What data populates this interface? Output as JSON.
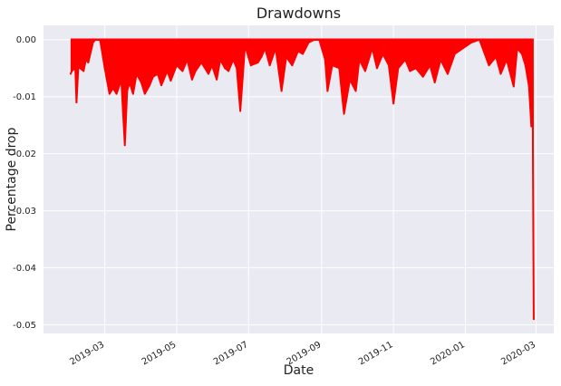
{
  "chart_data": {
    "type": "area",
    "title": "Drawdowns",
    "xlabel": "Date",
    "ylabel": "Percentage drop",
    "grid": true,
    "legend": "none",
    "x_type": "date",
    "xlim": [
      "2019-01-08",
      "2020-03-16"
    ],
    "ylim": [
      -0.0515,
      0.0025
    ],
    "x_ticks": [
      {
        "date": "2019-03-01",
        "label": "2019-03"
      },
      {
        "date": "2019-05-01",
        "label": "2019-05"
      },
      {
        "date": "2019-07-01",
        "label": "2019-07"
      },
      {
        "date": "2019-09-01",
        "label": "2019-09"
      },
      {
        "date": "2019-11-01",
        "label": "2019-11"
      },
      {
        "date": "2020-01-01",
        "label": "2020-01"
      },
      {
        "date": "2020-03-01",
        "label": "2020-03"
      }
    ],
    "y_ticks": [
      {
        "value": 0.0,
        "label": "0.00"
      },
      {
        "value": -0.01,
        "label": "-0.01"
      },
      {
        "value": -0.02,
        "label": "-0.02"
      },
      {
        "value": -0.03,
        "label": "-0.03"
      },
      {
        "value": -0.04,
        "label": "-0.04"
      },
      {
        "value": -0.05,
        "label": "-0.05"
      }
    ],
    "series": [
      {
        "color": "#ff0000",
        "x": [
          "2019-01-31",
          "2019-02-01",
          "2019-02-04",
          "2019-02-05",
          "2019-02-07",
          "2019-02-08",
          "2019-02-11",
          "2019-02-13",
          "2019-02-15",
          "2019-02-19",
          "2019-02-21",
          "2019-02-25",
          "2019-03-01",
          "2019-03-05",
          "2019-03-08",
          "2019-03-11",
          "2019-03-15",
          "2019-03-18",
          "2019-03-20",
          "2019-03-22",
          "2019-03-25",
          "2019-03-28",
          "2019-04-01",
          "2019-04-04",
          "2019-04-08",
          "2019-04-11",
          "2019-04-15",
          "2019-04-18",
          "2019-04-23",
          "2019-04-26",
          "2019-05-01",
          "2019-05-06",
          "2019-05-10",
          "2019-05-14",
          "2019-05-17",
          "2019-05-22",
          "2019-05-28",
          "2019-05-31",
          "2019-06-04",
          "2019-06-07",
          "2019-06-11",
          "2019-06-14",
          "2019-06-18",
          "2019-06-21",
          "2019-06-24",
          "2019-06-28",
          "2019-07-03",
          "2019-07-09",
          "2019-07-12",
          "2019-07-15",
          "2019-07-19",
          "2019-07-24",
          "2019-07-29",
          "2019-08-02",
          "2019-08-07",
          "2019-08-12",
          "2019-08-16",
          "2019-08-21",
          "2019-08-26",
          "2019-08-30",
          "2019-09-04",
          "2019-09-06",
          "2019-09-10",
          "2019-09-16",
          "2019-09-20",
          "2019-09-25",
          "2019-09-30",
          "2019-10-03",
          "2019-10-08",
          "2019-10-14",
          "2019-10-18",
          "2019-10-23",
          "2019-10-28",
          "2019-11-01",
          "2019-11-05",
          "2019-11-11",
          "2019-11-15",
          "2019-11-20",
          "2019-11-26",
          "2019-12-02",
          "2019-12-06",
          "2019-12-11",
          "2019-12-17",
          "2019-12-23",
          "2019-12-30",
          "2020-01-06",
          "2020-01-13",
          "2020-01-21",
          "2020-01-27",
          "2020-01-31",
          "2020-02-05",
          "2020-02-11",
          "2020-02-14",
          "2020-02-18",
          "2020-02-21",
          "2020-02-24",
          "2020-02-26",
          "2020-02-27",
          "2020-02-28"
        ],
        "y": [
          -0.006,
          -0.0055,
          -0.005,
          -0.011,
          -0.003,
          -0.005,
          -0.0055,
          -0.0035,
          -0.004,
          -0.0005,
          0.0,
          0.0,
          -0.005,
          -0.0095,
          -0.0085,
          -0.0095,
          -0.007,
          -0.0185,
          -0.009,
          -0.0075,
          -0.0095,
          -0.006,
          -0.0075,
          -0.0095,
          -0.008,
          -0.0065,
          -0.006,
          -0.008,
          -0.0055,
          -0.0072,
          -0.0045,
          -0.0055,
          -0.0035,
          -0.007,
          -0.0055,
          -0.004,
          -0.006,
          -0.0045,
          -0.007,
          -0.0035,
          -0.005,
          -0.0055,
          -0.0035,
          -0.005,
          -0.0125,
          -0.001,
          -0.0045,
          -0.004,
          -0.003,
          -0.0015,
          -0.0045,
          -0.0015,
          -0.009,
          -0.003,
          -0.0045,
          -0.002,
          -0.0025,
          -0.0005,
          0.0,
          0.0,
          -0.0035,
          -0.009,
          -0.0045,
          -0.005,
          -0.013,
          -0.007,
          -0.009,
          -0.0035,
          -0.0055,
          -0.0015,
          -0.005,
          -0.0025,
          -0.0045,
          -0.0112,
          -0.005,
          -0.0035,
          -0.0055,
          -0.005,
          -0.0065,
          -0.0045,
          -0.0075,
          -0.0035,
          -0.006,
          -0.0025,
          -0.0015,
          -0.0005,
          0.0,
          -0.0045,
          -0.003,
          -0.006,
          -0.0035,
          -0.0082,
          -0.0015,
          -0.0025,
          -0.0045,
          -0.0082,
          -0.0152,
          -0.0049,
          -0.049
        ]
      }
    ]
  }
}
